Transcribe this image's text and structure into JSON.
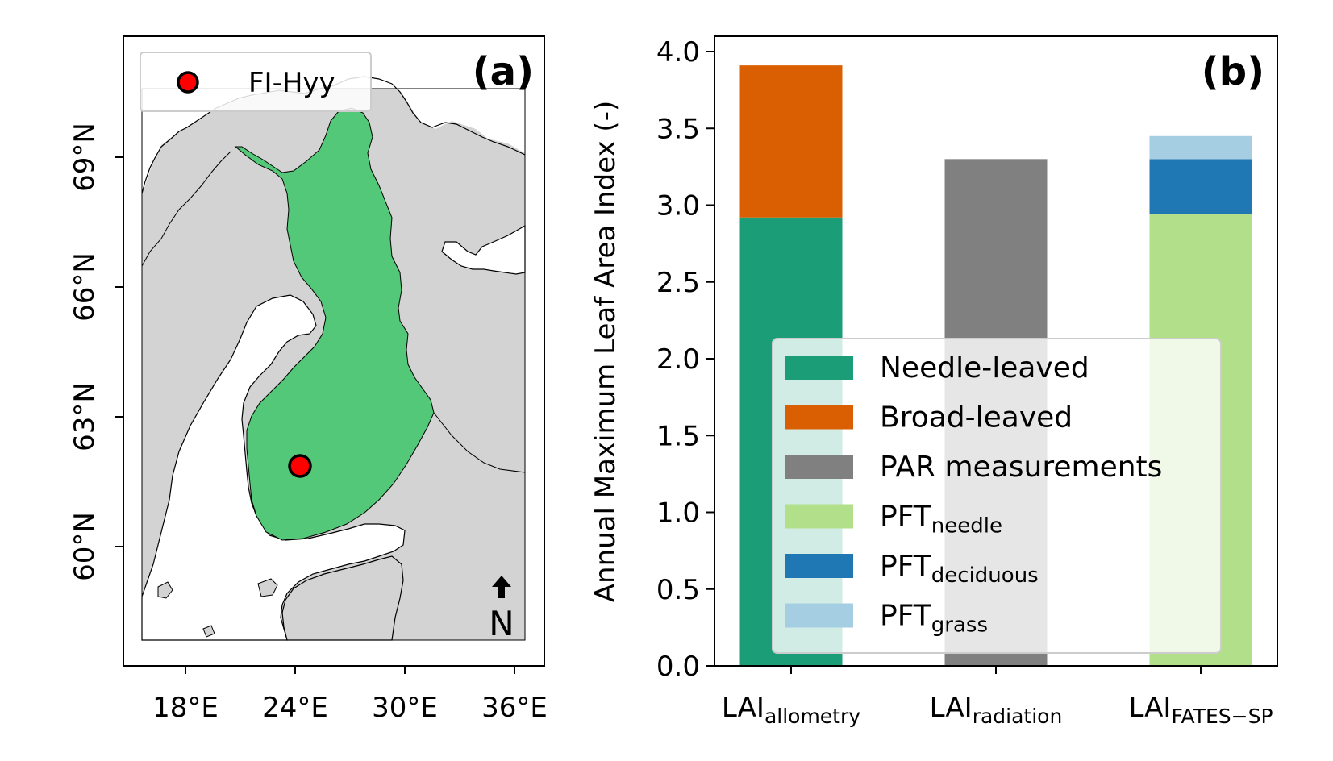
{
  "map_panel": {
    "panel_label": "(a)",
    "legend_label": "FI-Hyy",
    "north_arrow_label": "N",
    "x_ticks": [
      "18°E",
      "24°E",
      "30°E",
      "36°E"
    ],
    "y_ticks": [
      "69°N",
      "66°N",
      "63°N",
      "60°N"
    ],
    "colors": {
      "land": "#d3d3d3",
      "finland": "#52c878",
      "site": "#ff0000",
      "water": "#ffffff"
    }
  },
  "chart_data": {
    "type": "bar",
    "stacked": true,
    "panel_label": "(b)",
    "ylabel": "Annual Maximum Leaf Area Index (-)",
    "xlabel": "",
    "ylim": [
      0,
      4.0
    ],
    "y_ticks": [
      0.0,
      0.5,
      1.0,
      1.5,
      2.0,
      2.5,
      3.0,
      3.5,
      4.0
    ],
    "categories": [
      {
        "base": "LAI",
        "sub": "allometry"
      },
      {
        "base": "LAI",
        "sub": "radiation"
      },
      {
        "base": "LAI",
        "sub": "FATES−SP"
      }
    ],
    "series": [
      {
        "name": "Needle-leaved",
        "name_sub": "",
        "color": "#1b9e77",
        "values": [
          2.92,
          0,
          0
        ]
      },
      {
        "name": "Broad-leaved",
        "name_sub": "",
        "color": "#d95f02",
        "values": [
          0.99,
          0,
          0
        ]
      },
      {
        "name": "PAR measurements",
        "name_sub": "",
        "color": "#808080",
        "values": [
          0,
          3.3,
          0
        ]
      },
      {
        "name": "PFT",
        "name_sub": "needle",
        "color": "#b2df8a",
        "values": [
          0,
          0,
          2.94
        ]
      },
      {
        "name": "PFT",
        "name_sub": "deciduous",
        "color": "#1f78b4",
        "values": [
          0,
          0,
          0.36
        ]
      },
      {
        "name": "PFT",
        "name_sub": "grass",
        "color": "#a6cee3",
        "values": [
          0,
          0,
          0.15
        ]
      }
    ],
    "legend_position": "lower-right"
  }
}
